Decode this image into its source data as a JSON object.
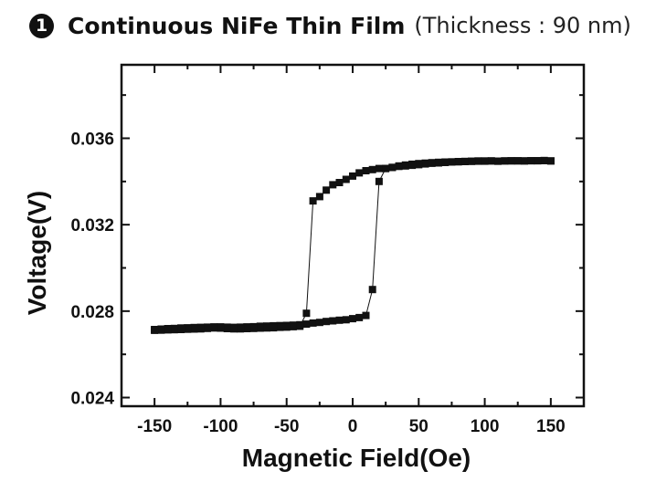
{
  "header": {
    "badge": "1",
    "title": "Continuous NiFe Thin Film",
    "subtitle": "(Thickness : 90 nm)"
  },
  "colors": {
    "marker": "#111111",
    "line": "#111111",
    "frame": "#111111"
  },
  "chart_data": {
    "type": "line",
    "title": "Continuous NiFe Thin Film",
    "subtitle": "(Thickness : 90 nm)",
    "xlabel": "Magnetic Field(Oe)",
    "ylabel": "Voltage(V)",
    "xlim": [
      -175,
      175
    ],
    "ylim": [
      0.0236,
      0.0394
    ],
    "xticks": [
      -150,
      -100,
      -50,
      0,
      50,
      100,
      150
    ],
    "xtick_labels": [
      "-150",
      "-100",
      "-50",
      "0",
      "50",
      "100",
      "150"
    ],
    "yticks": [
      0.024,
      0.028,
      0.032,
      0.036
    ],
    "ytick_labels": [
      "0.024",
      "0.028",
      "0.032",
      "0.036"
    ],
    "grid": false,
    "legend": "none",
    "marker": "square",
    "series": [
      {
        "name": "",
        "x": [
          -150,
          -145,
          -140,
          -135,
          -130,
          -125,
          -120,
          -115,
          -110,
          -105,
          -100,
          -95,
          -90,
          -85,
          -80,
          -75,
          -70,
          -65,
          -60,
          -55,
          -50,
          -45,
          -40,
          -35,
          -30,
          -25,
          -20,
          -15,
          -10,
          -5,
          0,
          5,
          10,
          15,
          20,
          25,
          30,
          35,
          40,
          45,
          50,
          55,
          60,
          65,
          70,
          75,
          80,
          85,
          90,
          95,
          100,
          105,
          110,
          115,
          120,
          125,
          130,
          135,
          140,
          145,
          150
        ],
        "y": [
          0.02715,
          0.02717,
          0.02719,
          0.0272,
          0.02722,
          0.02723,
          0.02724,
          0.02725,
          0.02726,
          0.02727,
          0.02727,
          0.02726,
          0.02725,
          0.02726,
          0.02727,
          0.02728,
          0.0273,
          0.02731,
          0.02732,
          0.02733,
          0.02734,
          0.02735,
          0.02737,
          0.0274,
          0.02745,
          0.02748,
          0.02752,
          0.02755,
          0.02758,
          0.0276,
          0.02765,
          0.0277,
          0.0278,
          0.029,
          0.034,
          0.0346,
          0.03465,
          0.03472,
          0.03476,
          0.0348,
          0.03483,
          0.03485,
          0.03487,
          0.03489,
          0.0349,
          0.03491,
          0.03492,
          0.03493,
          0.03494,
          0.03495,
          0.03494,
          0.03495,
          0.03494,
          0.03495,
          0.03496,
          0.03495,
          0.03495,
          0.03496,
          0.03496,
          0.03497,
          0.03495
        ]
      },
      {
        "name": "",
        "x": [
          150,
          145,
          140,
          135,
          130,
          125,
          120,
          115,
          110,
          105,
          100,
          95,
          90,
          85,
          80,
          75,
          70,
          65,
          60,
          55,
          50,
          45,
          40,
          35,
          30,
          25,
          20,
          15,
          10,
          5,
          0,
          -5,
          -10,
          -15,
          -20,
          -25,
          -30,
          -35,
          -40,
          -45,
          -50,
          -55,
          -60,
          -65,
          -70,
          -75,
          -80,
          -85,
          -90,
          -95,
          -100,
          -105,
          -110,
          -115,
          -120,
          -125,
          -130,
          -135,
          -140,
          -145,
          -150
        ],
        "y": [
          0.03495,
          0.03497,
          0.03496,
          0.03496,
          0.03495,
          0.03496,
          0.03495,
          0.03495,
          0.03494,
          0.03495,
          0.03495,
          0.03494,
          0.03493,
          0.03492,
          0.03491,
          0.0349,
          0.03488,
          0.03486,
          0.03484,
          0.03481,
          0.03478,
          0.03475,
          0.03472,
          0.0347,
          0.03465,
          0.0346,
          0.0346,
          0.03455,
          0.0345,
          0.0344,
          0.03425,
          0.0341,
          0.03395,
          0.03385,
          0.0336,
          0.0333,
          0.0331,
          0.0279,
          0.0273,
          0.02728,
          0.02726,
          0.02725,
          0.02723,
          0.02722,
          0.02721,
          0.0272,
          0.02719,
          0.02718,
          0.02718,
          0.02719,
          0.02721,
          0.02722,
          0.0272,
          0.02718,
          0.02717,
          0.02716,
          0.02715,
          0.02714,
          0.02713,
          0.02712,
          0.02711
        ]
      }
    ]
  }
}
